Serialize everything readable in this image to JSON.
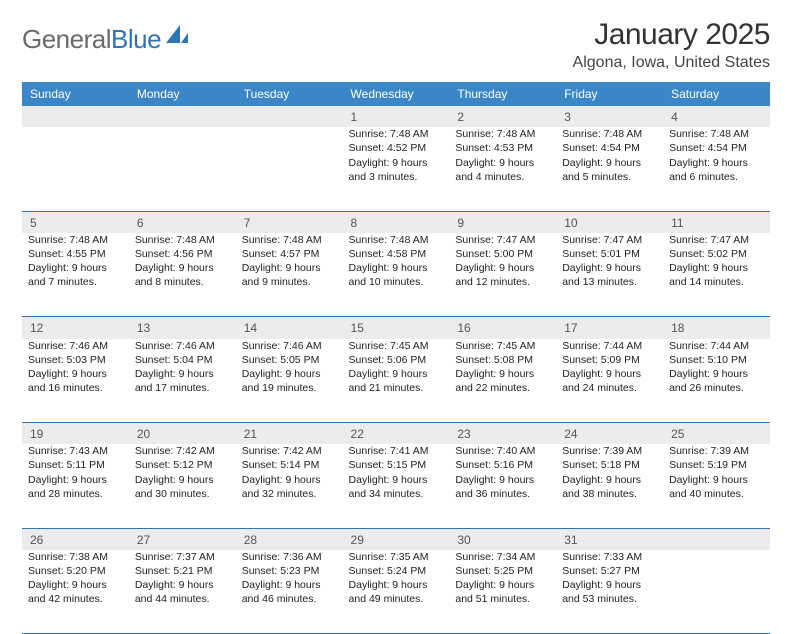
{
  "brand": {
    "general": "General",
    "blue": "Blue"
  },
  "header": {
    "title": "January 2025",
    "location": "Algona, Iowa, United States"
  },
  "colors": {
    "header_bg": "#3b86c6",
    "rule": "#2f75b5",
    "daynum_bg": "#ececec",
    "page_bg": "#ffffff",
    "logo_gray": "#6b6b6b",
    "logo_blue": "#2f75b5"
  },
  "weekdays": [
    "Sunday",
    "Monday",
    "Tuesday",
    "Wednesday",
    "Thursday",
    "Friday",
    "Saturday"
  ],
  "weeks": [
    {
      "nums": [
        "",
        "",
        "",
        "1",
        "2",
        "3",
        "4"
      ],
      "cells": [
        null,
        null,
        null,
        {
          "l1": "Sunrise: 7:48 AM",
          "l2": "Sunset: 4:52 PM",
          "l3": "Daylight: 9 hours and 3 minutes."
        },
        {
          "l1": "Sunrise: 7:48 AM",
          "l2": "Sunset: 4:53 PM",
          "l3": "Daylight: 9 hours and 4 minutes."
        },
        {
          "l1": "Sunrise: 7:48 AM",
          "l2": "Sunset: 4:54 PM",
          "l3": "Daylight: 9 hours and 5 minutes."
        },
        {
          "l1": "Sunrise: 7:48 AM",
          "l2": "Sunset: 4:54 PM",
          "l3": "Daylight: 9 hours and 6 minutes."
        }
      ]
    },
    {
      "nums": [
        "5",
        "6",
        "7",
        "8",
        "9",
        "10",
        "11"
      ],
      "cells": [
        {
          "l1": "Sunrise: 7:48 AM",
          "l2": "Sunset: 4:55 PM",
          "l3": "Daylight: 9 hours and 7 minutes."
        },
        {
          "l1": "Sunrise: 7:48 AM",
          "l2": "Sunset: 4:56 PM",
          "l3": "Daylight: 9 hours and 8 minutes."
        },
        {
          "l1": "Sunrise: 7:48 AM",
          "l2": "Sunset: 4:57 PM",
          "l3": "Daylight: 9 hours and 9 minutes."
        },
        {
          "l1": "Sunrise: 7:48 AM",
          "l2": "Sunset: 4:58 PM",
          "l3": "Daylight: 9 hours and 10 minutes."
        },
        {
          "l1": "Sunrise: 7:47 AM",
          "l2": "Sunset: 5:00 PM",
          "l3": "Daylight: 9 hours and 12 minutes."
        },
        {
          "l1": "Sunrise: 7:47 AM",
          "l2": "Sunset: 5:01 PM",
          "l3": "Daylight: 9 hours and 13 minutes."
        },
        {
          "l1": "Sunrise: 7:47 AM",
          "l2": "Sunset: 5:02 PM",
          "l3": "Daylight: 9 hours and 14 minutes."
        }
      ]
    },
    {
      "nums": [
        "12",
        "13",
        "14",
        "15",
        "16",
        "17",
        "18"
      ],
      "cells": [
        {
          "l1": "Sunrise: 7:46 AM",
          "l2": "Sunset: 5:03 PM",
          "l3": "Daylight: 9 hours and 16 minutes."
        },
        {
          "l1": "Sunrise: 7:46 AM",
          "l2": "Sunset: 5:04 PM",
          "l3": "Daylight: 9 hours and 17 minutes."
        },
        {
          "l1": "Sunrise: 7:46 AM",
          "l2": "Sunset: 5:05 PM",
          "l3": "Daylight: 9 hours and 19 minutes."
        },
        {
          "l1": "Sunrise: 7:45 AM",
          "l2": "Sunset: 5:06 PM",
          "l3": "Daylight: 9 hours and 21 minutes."
        },
        {
          "l1": "Sunrise: 7:45 AM",
          "l2": "Sunset: 5:08 PM",
          "l3": "Daylight: 9 hours and 22 minutes."
        },
        {
          "l1": "Sunrise: 7:44 AM",
          "l2": "Sunset: 5:09 PM",
          "l3": "Daylight: 9 hours and 24 minutes."
        },
        {
          "l1": "Sunrise: 7:44 AM",
          "l2": "Sunset: 5:10 PM",
          "l3": "Daylight: 9 hours and 26 minutes."
        }
      ]
    },
    {
      "nums": [
        "19",
        "20",
        "21",
        "22",
        "23",
        "24",
        "25"
      ],
      "cells": [
        {
          "l1": "Sunrise: 7:43 AM",
          "l2": "Sunset: 5:11 PM",
          "l3": "Daylight: 9 hours and 28 minutes."
        },
        {
          "l1": "Sunrise: 7:42 AM",
          "l2": "Sunset: 5:12 PM",
          "l3": "Daylight: 9 hours and 30 minutes."
        },
        {
          "l1": "Sunrise: 7:42 AM",
          "l2": "Sunset: 5:14 PM",
          "l3": "Daylight: 9 hours and 32 minutes."
        },
        {
          "l1": "Sunrise: 7:41 AM",
          "l2": "Sunset: 5:15 PM",
          "l3": "Daylight: 9 hours and 34 minutes."
        },
        {
          "l1": "Sunrise: 7:40 AM",
          "l2": "Sunset: 5:16 PM",
          "l3": "Daylight: 9 hours and 36 minutes."
        },
        {
          "l1": "Sunrise: 7:39 AM",
          "l2": "Sunset: 5:18 PM",
          "l3": "Daylight: 9 hours and 38 minutes."
        },
        {
          "l1": "Sunrise: 7:39 AM",
          "l2": "Sunset: 5:19 PM",
          "l3": "Daylight: 9 hours and 40 minutes."
        }
      ]
    },
    {
      "nums": [
        "26",
        "27",
        "28",
        "29",
        "30",
        "31",
        ""
      ],
      "cells": [
        {
          "l1": "Sunrise: 7:38 AM",
          "l2": "Sunset: 5:20 PM",
          "l3": "Daylight: 9 hours and 42 minutes."
        },
        {
          "l1": "Sunrise: 7:37 AM",
          "l2": "Sunset: 5:21 PM",
          "l3": "Daylight: 9 hours and 44 minutes."
        },
        {
          "l1": "Sunrise: 7:36 AM",
          "l2": "Sunset: 5:23 PM",
          "l3": "Daylight: 9 hours and 46 minutes."
        },
        {
          "l1": "Sunrise: 7:35 AM",
          "l2": "Sunset: 5:24 PM",
          "l3": "Daylight: 9 hours and 49 minutes."
        },
        {
          "l1": "Sunrise: 7:34 AM",
          "l2": "Sunset: 5:25 PM",
          "l3": "Daylight: 9 hours and 51 minutes."
        },
        {
          "l1": "Sunrise: 7:33 AM",
          "l2": "Sunset: 5:27 PM",
          "l3": "Daylight: 9 hours and 53 minutes."
        },
        null
      ]
    }
  ]
}
